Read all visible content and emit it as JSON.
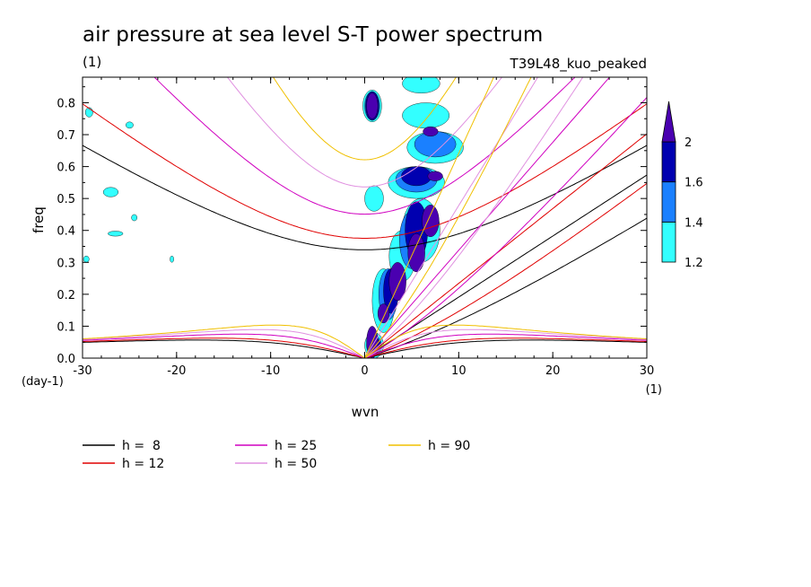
{
  "chart_data": {
    "type": "line",
    "title": "air pressure at sea level S-T power spectrum",
    "subtitle": "(1)",
    "experiment_label": "T39L48_kuo_peaked",
    "xlabel": "wvn",
    "ylabel": "freq",
    "x_unit_label": "(1)",
    "y_unit_label": "(day-1)",
    "xlim": [
      -30,
      30
    ],
    "ylim": [
      0,
      0.88
    ],
    "x_ticks": [
      -30,
      -20,
      -10,
      0,
      10,
      20,
      30
    ],
    "x_tick_labels": [
      "-30",
      "-20",
      "-10",
      "0",
      "10",
      "20",
      "30"
    ],
    "y_ticks": [
      0,
      0.1,
      0.2,
      0.3,
      0.4,
      0.5,
      0.6,
      0.7,
      0.8
    ],
    "y_tick_labels": [
      "0.0",
      "0.1",
      "0.2",
      "0.3",
      "0.4",
      "0.5",
      "0.6",
      "0.7",
      "0.8"
    ],
    "series": [
      {
        "name": "h =  8",
        "equivalent_depth_m": 8,
        "color": "#000000"
      },
      {
        "name": "h = 12",
        "equivalent_depth_m": 12,
        "color": "#e00000"
      },
      {
        "name": "h = 25",
        "equivalent_depth_m": 25,
        "color": "#d000c0"
      },
      {
        "name": "h = 50",
        "equivalent_depth_m": 50,
        "color": "#e090e0"
      },
      {
        "name": "h = 90",
        "equivalent_depth_m": 90,
        "color": "#f0c000"
      }
    ],
    "colorbar": {
      "levels": [
        "1.2",
        "1.4",
        "1.6",
        "2"
      ],
      "colors": [
        "#33ffff",
        "#1a80ff",
        "#0000b0",
        "#4a00b0"
      ]
    },
    "contours": [
      {
        "level": 1.2,
        "x": 1.0,
        "y": 0.04,
        "rx": 1.0,
        "ry": 0.04
      },
      {
        "level": 1.2,
        "x": 2.0,
        "y": 0.18,
        "rx": 1.2,
        "ry": 0.1
      },
      {
        "level": 1.2,
        "x": 4.0,
        "y": 0.32,
        "rx": 1.4,
        "ry": 0.08
      },
      {
        "level": 1.2,
        "x": 6.0,
        "y": 0.4,
        "rx": 2.0,
        "ry": 0.1
      },
      {
        "level": 1.2,
        "x": 5.5,
        "y": 0.55,
        "rx": 3.0,
        "ry": 0.05
      },
      {
        "level": 1.2,
        "x": 7.5,
        "y": 0.66,
        "rx": 3.0,
        "ry": 0.05
      },
      {
        "level": 1.2,
        "x": 6.5,
        "y": 0.76,
        "rx": 2.5,
        "ry": 0.04
      },
      {
        "level": 1.2,
        "x": 6.0,
        "y": 0.86,
        "rx": 2.0,
        "ry": 0.03
      },
      {
        "level": 1.2,
        "x": 1.0,
        "y": 0.5,
        "rx": 1.0,
        "ry": 0.04
      },
      {
        "level": 1.2,
        "x": 0.8,
        "y": 0.79,
        "rx": 1.0,
        "ry": 0.05
      },
      {
        "level": 1.2,
        "x": -27.0,
        "y": 0.52,
        "rx": 0.8,
        "ry": 0.015
      },
      {
        "level": 1.2,
        "x": -26.5,
        "y": 0.39,
        "rx": 0.8,
        "ry": 0.008
      },
      {
        "level": 1.2,
        "x": -25.0,
        "y": 0.73,
        "rx": 0.4,
        "ry": 0.01
      },
      {
        "level": 1.2,
        "x": -29.3,
        "y": 0.77,
        "rx": 0.4,
        "ry": 0.015
      },
      {
        "level": 1.2,
        "x": -24.5,
        "y": 0.44,
        "rx": 0.3,
        "ry": 0.01
      },
      {
        "level": 1.2,
        "x": -20.5,
        "y": 0.31,
        "rx": 0.2,
        "ry": 0.01
      },
      {
        "level": 1.2,
        "x": -29.6,
        "y": 0.31,
        "rx": 0.3,
        "ry": 0.01
      },
      {
        "level": 1.4,
        "x": 1.0,
        "y": 0.04,
        "rx": 0.8,
        "ry": 0.03
      },
      {
        "level": 1.4,
        "x": 2.5,
        "y": 0.2,
        "rx": 1.0,
        "ry": 0.08
      },
      {
        "level": 1.4,
        "x": 5.0,
        "y": 0.37,
        "rx": 1.3,
        "ry": 0.09
      },
      {
        "level": 1.4,
        "x": 5.5,
        "y": 0.56,
        "rx": 2.2,
        "ry": 0.04
      },
      {
        "level": 1.4,
        "x": 7.5,
        "y": 0.67,
        "rx": 2.2,
        "ry": 0.04
      },
      {
        "level": 1.4,
        "x": 0.8,
        "y": 0.79,
        "rx": 0.8,
        "ry": 0.045
      },
      {
        "level": 1.6,
        "x": 1.0,
        "y": 0.04,
        "rx": 0.7,
        "ry": 0.025
      },
      {
        "level": 1.6,
        "x": 2.8,
        "y": 0.21,
        "rx": 0.8,
        "ry": 0.07
      },
      {
        "level": 1.6,
        "x": 5.5,
        "y": 0.4,
        "rx": 1.2,
        "ry": 0.09
      },
      {
        "level": 1.6,
        "x": 5.5,
        "y": 0.57,
        "rx": 1.6,
        "ry": 0.03
      },
      {
        "level": 1.6,
        "x": 0.8,
        "y": 0.79,
        "rx": 0.7,
        "ry": 0.045
      },
      {
        "level": 2.0,
        "x": 0.8,
        "y": 0.05,
        "rx": 0.6,
        "ry": 0.05
      },
      {
        "level": 2.0,
        "x": 2.0,
        "y": 0.14,
        "rx": 0.6,
        "ry": 0.03
      },
      {
        "level": 2.0,
        "x": 3.5,
        "y": 0.24,
        "rx": 0.9,
        "ry": 0.06
      },
      {
        "level": 2.0,
        "x": 5.5,
        "y": 0.33,
        "rx": 0.9,
        "ry": 0.06
      },
      {
        "level": 2.0,
        "x": 7.0,
        "y": 0.43,
        "rx": 0.9,
        "ry": 0.05
      },
      {
        "level": 2.0,
        "x": 0.8,
        "y": 0.79,
        "rx": 0.6,
        "ry": 0.04
      },
      {
        "level": 2.0,
        "x": 7.5,
        "y": 0.57,
        "rx": 0.8,
        "ry": 0.015
      },
      {
        "level": 2.0,
        "x": 7.0,
        "y": 0.71,
        "rx": 0.8,
        "ry": 0.015
      }
    ]
  }
}
